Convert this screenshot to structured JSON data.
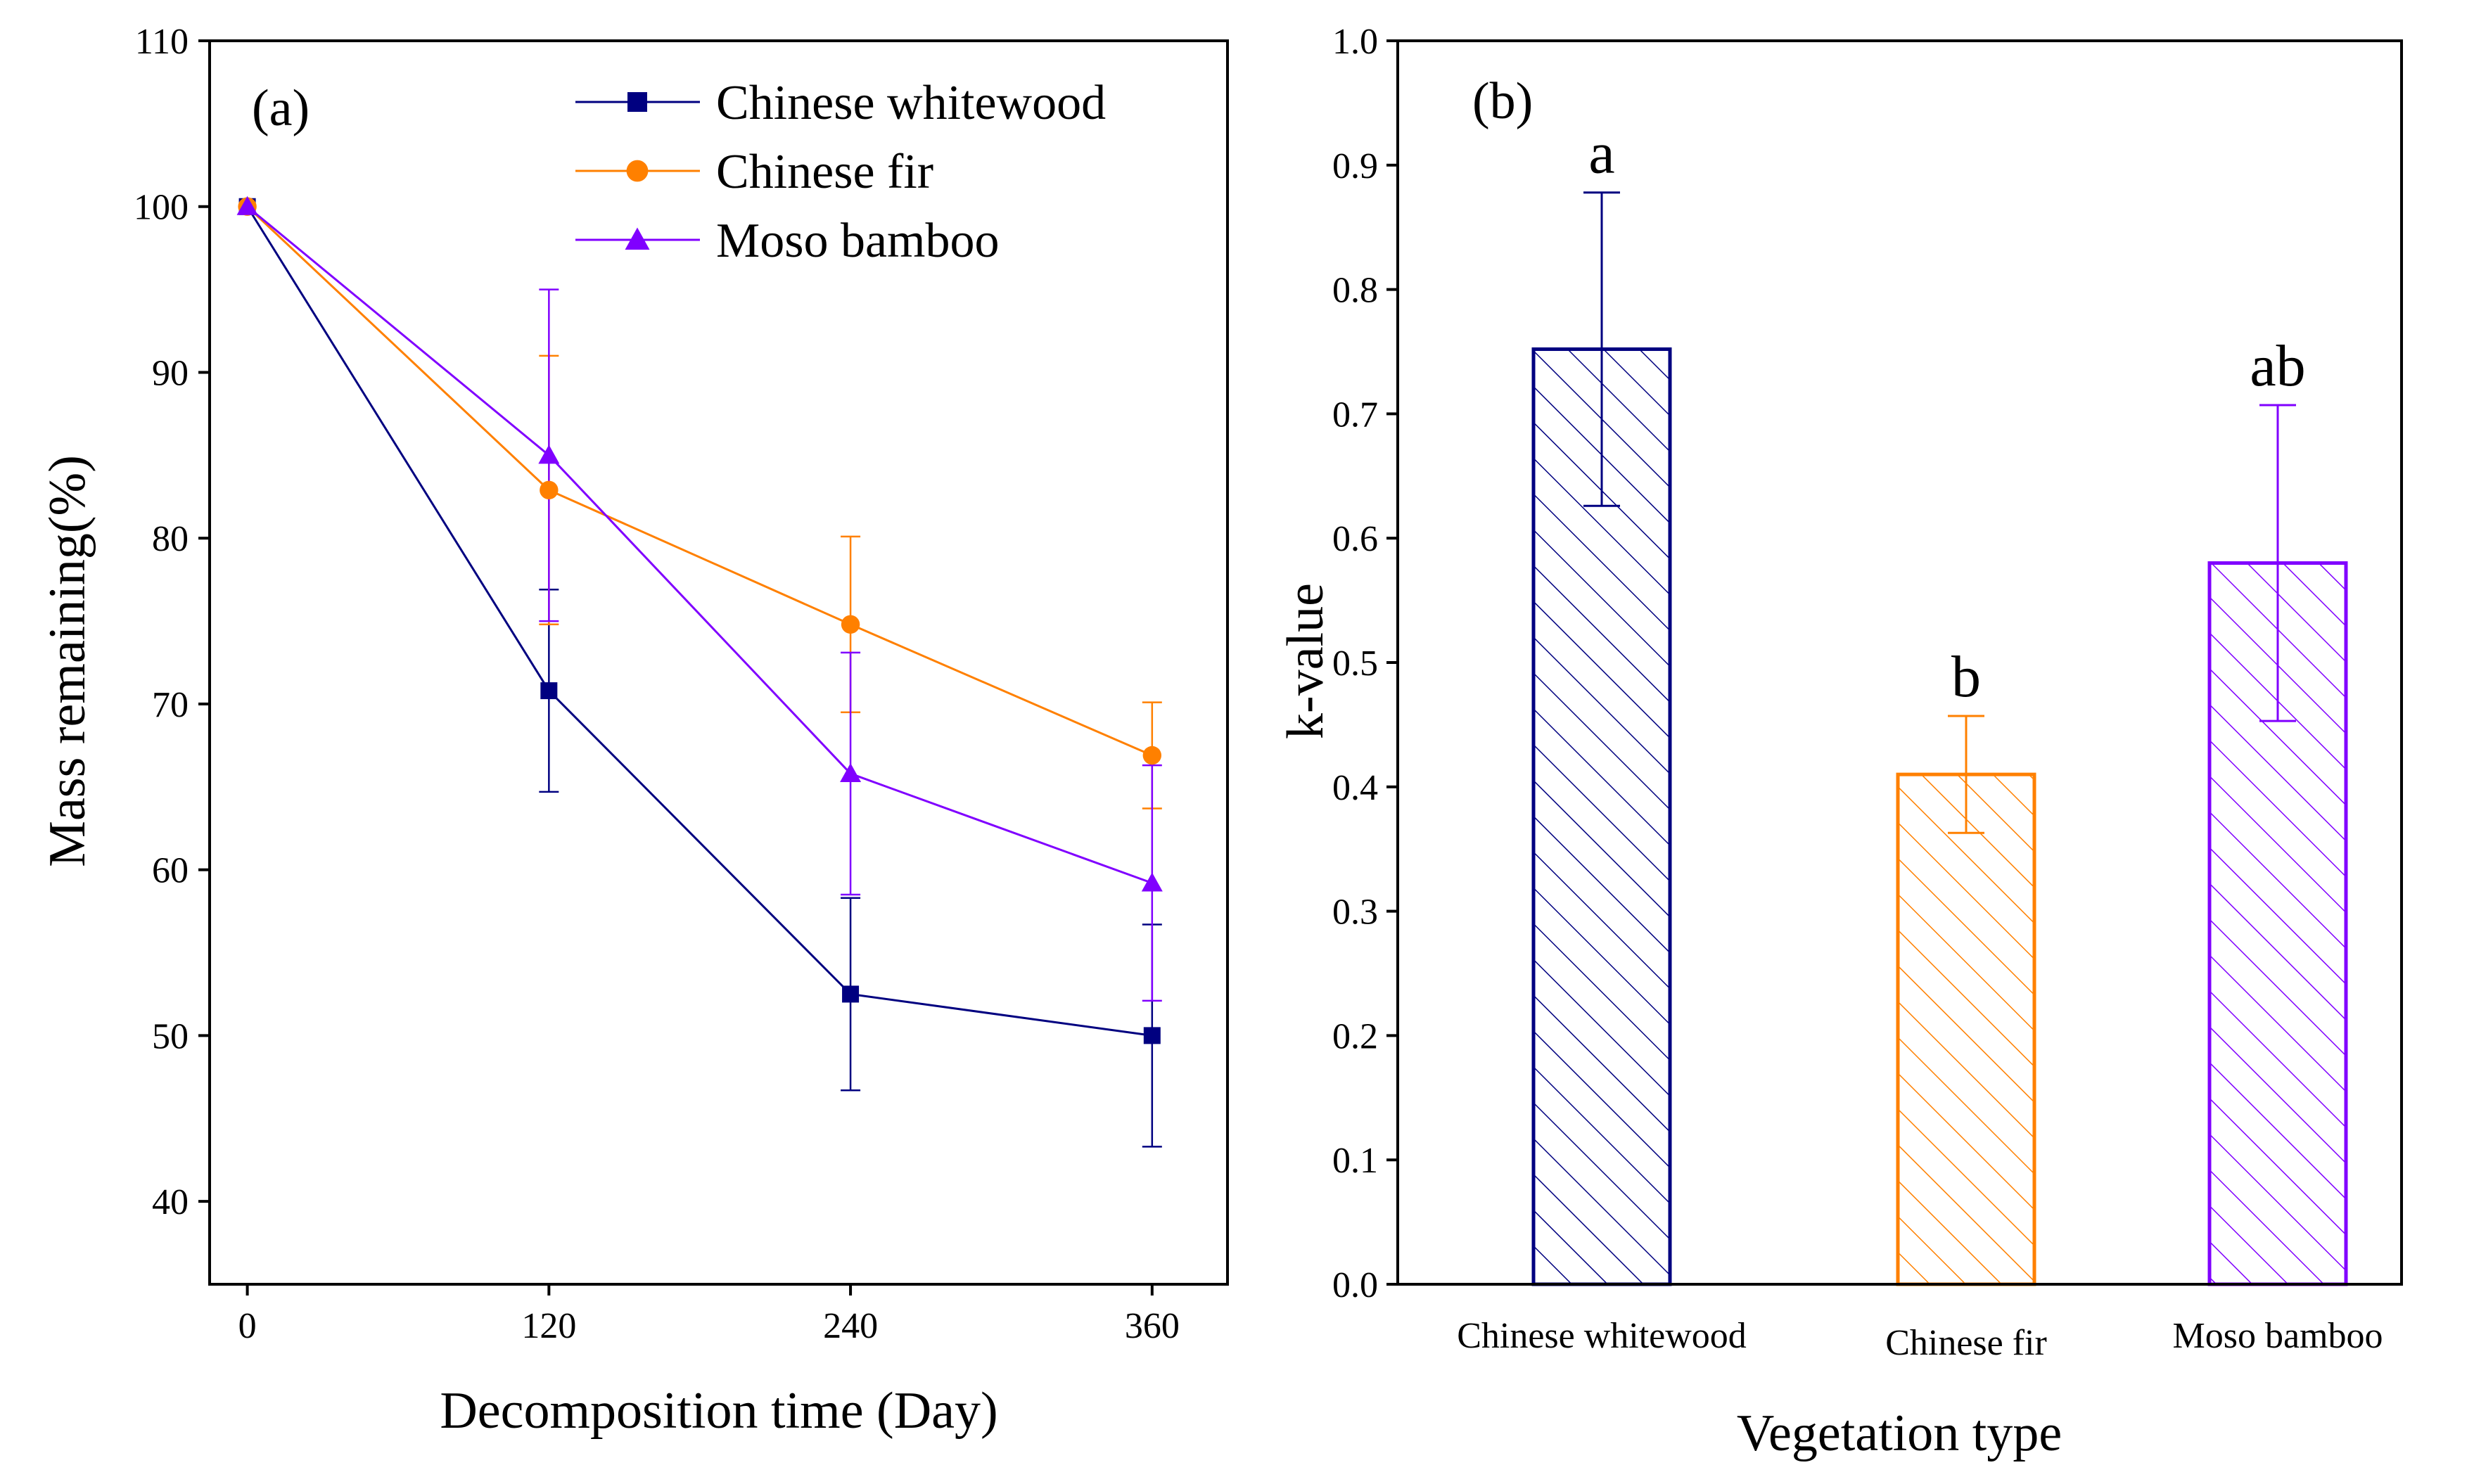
{
  "chart_data": [
    {
      "panel": "(a)",
      "type": "line",
      "xlabel": "Decomposition time (Day)",
      "ylabel": "Mass remaining(%)",
      "x": [
        0,
        120,
        240,
        360
      ],
      "x_ticks": [
        "0",
        "120",
        "240",
        "360"
      ],
      "xlim": [
        -15,
        390
      ],
      "ylim": [
        35,
        110
      ],
      "y_ticks": [
        "40",
        "50",
        "60",
        "70",
        "80",
        "90",
        "100",
        "110"
      ],
      "legend_position": "top-right",
      "series": [
        {
          "name": "Chinese whitewood",
          "color": "#000080",
          "marker": "square",
          "values": [
            100,
            70.8,
            52.5,
            50.0
          ],
          "errors": [
            0,
            6.1,
            5.8,
            6.7
          ]
        },
        {
          "name": "Chinese fir",
          "color": "#ff8000",
          "marker": "circle",
          "values": [
            100,
            82.9,
            74.8,
            66.9
          ],
          "errors": [
            0,
            8.1,
            5.3,
            3.2
          ]
        },
        {
          "name": "Moso bamboo",
          "color": "#8000ff",
          "marker": "triangle",
          "values": [
            100,
            85.0,
            65.8,
            59.2
          ],
          "errors": [
            0,
            10.0,
            7.3,
            7.1
          ]
        }
      ]
    },
    {
      "panel": "(b)",
      "type": "bar",
      "xlabel": "Vegetation type",
      "ylabel": "k-value",
      "categories": [
        "Chinese whitewood",
        "Chinese fir",
        "Moso bamboo"
      ],
      "values": [
        0.752,
        0.41,
        0.58
      ],
      "errors": [
        0.126,
        0.047,
        0.127
      ],
      "significance": [
        "a",
        "b",
        "ab"
      ],
      "colors": [
        "#000080",
        "#ff8000",
        "#8000ff"
      ],
      "hatch": "diagonal",
      "ylim": [
        0,
        1.0
      ],
      "y_ticks": [
        "0.0",
        "0.1",
        "0.2",
        "0.3",
        "0.4",
        "0.5",
        "0.6",
        "0.7",
        "0.8",
        "0.9",
        "1.0"
      ]
    }
  ]
}
